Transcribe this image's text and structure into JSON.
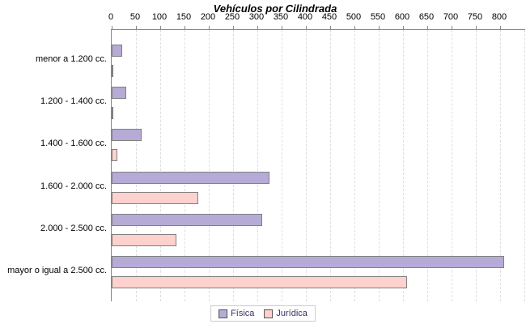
{
  "chart_data": {
    "type": "bar",
    "orientation": "horizontal",
    "title": "Vehículos por Cilindrada",
    "categories": [
      "menor a 1.200 cc.",
      "1.200 - 1.400 cc.",
      "1.400 - 1.600 cc.",
      "1.600 - 2.000 cc.",
      "2.000 - 2.500 cc.",
      "mayor o igual a 2.500 cc."
    ],
    "series": [
      {
        "name": "Física",
        "color": "#b5abd6",
        "values": [
          22,
          30,
          62,
          325,
          310,
          808
        ]
      },
      {
        "name": "Jurídica",
        "color": "#fdd1cd",
        "values": [
          0,
          0,
          11,
          179,
          134,
          609
        ]
      }
    ],
    "x_ticks": [
      0,
      50,
      100,
      150,
      200,
      250,
      300,
      350,
      400,
      450,
      500,
      550,
      600,
      650,
      700,
      750,
      800
    ],
    "xlim": [
      0,
      850
    ],
    "grid": "vertical-dashed",
    "legend_position": "bottom",
    "colors": {
      "bar_border": "#808080",
      "axis_line": "#888888",
      "gridline": "#dddddd",
      "legend_text": "#333366",
      "legend_border": "#cccccc",
      "text": "#000000"
    }
  }
}
